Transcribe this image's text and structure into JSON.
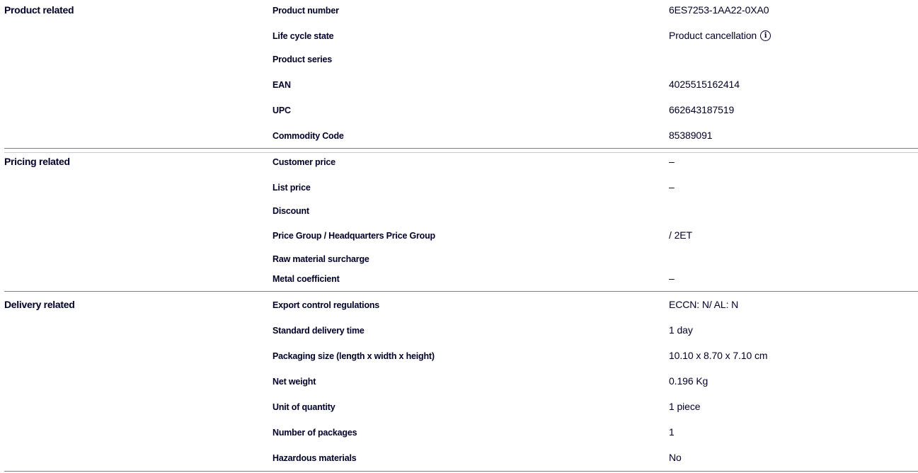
{
  "sections": [
    {
      "title": "Product related",
      "rows": [
        {
          "label": "Product number",
          "value": "6ES7253-1AA22-0XA0"
        },
        {
          "label": "Life cycle state",
          "value": "Product cancellation",
          "icon": "info-icon"
        },
        {
          "label": "Product series",
          "value": ""
        },
        {
          "label": "EAN",
          "value": "4025515162414"
        },
        {
          "label": "UPC",
          "value": "662643187519"
        },
        {
          "label": "Commodity Code",
          "value": "85389091"
        }
      ]
    },
    {
      "title": "Pricing related",
      "rows": [
        {
          "label": "Customer price",
          "value": "–"
        },
        {
          "label": "List price",
          "value": "–"
        },
        {
          "label": "Discount",
          "value": ""
        },
        {
          "label": "Price Group / Headquarters Price Group",
          "value": "/ 2ET"
        },
        {
          "label": "Raw material surcharge",
          "value": ""
        },
        {
          "label": "Metal coefficient",
          "value": "–"
        }
      ]
    },
    {
      "title": "Delivery related",
      "rows": [
        {
          "label": "Export control regulations",
          "value": "ECCN: N/ AL: N"
        },
        {
          "label": "Standard delivery time",
          "value": "1 day"
        },
        {
          "label": "Packaging size (length x width x height)",
          "value": "10.10 x 8.70 x 7.10 cm"
        },
        {
          "label": "Net weight",
          "value": "0.196 Kg"
        },
        {
          "label": "Unit of quantity",
          "value": "1 piece"
        },
        {
          "label": "Number of packages",
          "value": "1"
        },
        {
          "label": "Hazardous materials",
          "value": "No"
        }
      ]
    }
  ]
}
